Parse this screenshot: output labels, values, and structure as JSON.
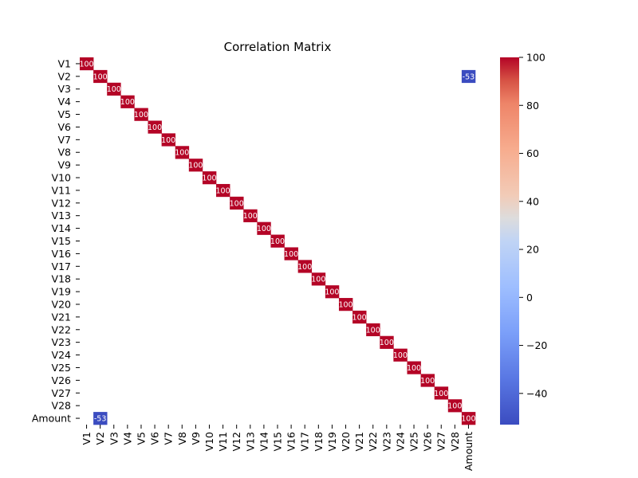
{
  "chart_data": {
    "type": "heatmap",
    "title": "Correlation Matrix",
    "xlabel": "",
    "ylabel": "",
    "labels": [
      "V1",
      "V2",
      "V3",
      "V4",
      "V5",
      "V6",
      "V7",
      "V8",
      "V9",
      "V10",
      "V11",
      "V12",
      "V13",
      "V14",
      "V15",
      "V16",
      "V17",
      "V18",
      "V19",
      "V20",
      "V21",
      "V22",
      "V23",
      "V24",
      "V25",
      "V26",
      "V27",
      "V28",
      "Amount"
    ],
    "displayed_cells": [
      {
        "row": "V1",
        "col": "V1",
        "value": 100,
        "label": "100"
      },
      {
        "row": "V2",
        "col": "V2",
        "value": 100,
        "label": "100"
      },
      {
        "row": "V3",
        "col": "V3",
        "value": 100,
        "label": "100"
      },
      {
        "row": "V4",
        "col": "V4",
        "value": 100,
        "label": "100"
      },
      {
        "row": "V5",
        "col": "V5",
        "value": 100,
        "label": "100"
      },
      {
        "row": "V6",
        "col": "V6",
        "value": 100,
        "label": "100"
      },
      {
        "row": "V7",
        "col": "V7",
        "value": 100,
        "label": "100"
      },
      {
        "row": "V8",
        "col": "V8",
        "value": 100,
        "label": "100"
      },
      {
        "row": "V9",
        "col": "V9",
        "value": 100,
        "label": "100"
      },
      {
        "row": "V10",
        "col": "V10",
        "value": 100,
        "label": "100"
      },
      {
        "row": "V11",
        "col": "V11",
        "value": 100,
        "label": "100"
      },
      {
        "row": "V12",
        "col": "V12",
        "value": 100,
        "label": "100"
      },
      {
        "row": "V13",
        "col": "V13",
        "value": 100,
        "label": "100"
      },
      {
        "row": "V14",
        "col": "V14",
        "value": 100,
        "label": "100"
      },
      {
        "row": "V15",
        "col": "V15",
        "value": 100,
        "label": "100"
      },
      {
        "row": "V16",
        "col": "V16",
        "value": 100,
        "label": "100"
      },
      {
        "row": "V17",
        "col": "V17",
        "value": 100,
        "label": "100"
      },
      {
        "row": "V18",
        "col": "V18",
        "value": 100,
        "label": "100"
      },
      {
        "row": "V19",
        "col": "V19",
        "value": 100,
        "label": "100"
      },
      {
        "row": "V20",
        "col": "V20",
        "value": 100,
        "label": "100"
      },
      {
        "row": "V21",
        "col": "V21",
        "value": 100,
        "label": "100"
      },
      {
        "row": "V22",
        "col": "V22",
        "value": 100,
        "label": "100"
      },
      {
        "row": "V23",
        "col": "V23",
        "value": 100,
        "label": "100"
      },
      {
        "row": "V24",
        "col": "V24",
        "value": 100,
        "label": "100"
      },
      {
        "row": "V25",
        "col": "V25",
        "value": 100,
        "label": "100"
      },
      {
        "row": "V26",
        "col": "V26",
        "value": 100,
        "label": "100"
      },
      {
        "row": "V27",
        "col": "V27",
        "value": 100,
        "label": "100"
      },
      {
        "row": "V28",
        "col": "V28",
        "value": 100,
        "label": "100"
      },
      {
        "row": "Amount",
        "col": "Amount",
        "value": 100,
        "label": "100"
      },
      {
        "row": "V2",
        "col": "Amount",
        "value": -53,
        "label": "-53"
      },
      {
        "row": "Amount",
        "col": "V2",
        "value": -53,
        "label": "-53"
      }
    ],
    "colorbar": {
      "colormap": "coolwarm",
      "vmin": -53,
      "vmax": 100,
      "ticks": [
        100,
        80,
        60,
        40,
        20,
        0,
        -20,
        -40
      ],
      "tick_labels": [
        "100",
        "80",
        "60",
        "40",
        "20",
        "0",
        "−20",
        "−40"
      ]
    },
    "grid": false,
    "legend": "colorbar-right"
  }
}
